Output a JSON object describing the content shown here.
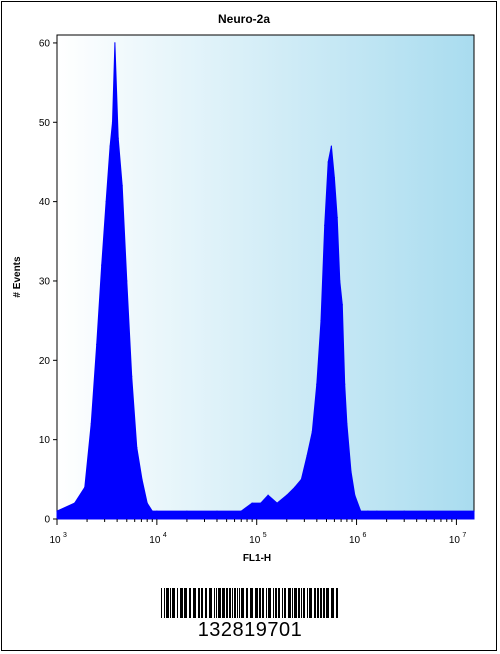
{
  "chart_data": {
    "type": "area",
    "title": "Neuro-2a",
    "xlabel": "FL1-H",
    "ylabel": "# Events",
    "x_scale": "log",
    "xlim": [
      1000,
      15000000
    ],
    "ylim": [
      0,
      61
    ],
    "grid": false,
    "legend": "none",
    "x_tick_labels": [
      {
        "base": "10",
        "exp": "3",
        "value": 1000
      },
      {
        "base": "10",
        "exp": "4",
        "value": 10000
      },
      {
        "base": "10",
        "exp": "5",
        "value": 100000
      },
      {
        "base": "10",
        "exp": "6",
        "value": 1000000
      },
      {
        "base": "10",
        "exp": "7",
        "value": 10000000
      }
    ],
    "y_ticks": [
      0,
      10,
      20,
      30,
      40,
      50,
      60
    ],
    "series": [
      {
        "color": "#0000ff",
        "x": [
          1000,
          1500,
          1900,
          2200,
          2500,
          2800,
          3100,
          3400,
          3600,
          3800,
          4100,
          4500,
          5000,
          5600,
          6300,
          7100,
          8000,
          9000,
          10000,
          20000,
          40000,
          70000,
          90000,
          110000,
          130000,
          160000,
          200000,
          240000,
          280000,
          320000,
          360000,
          400000,
          440000,
          480000,
          520000,
          560000,
          600000,
          640000,
          680000,
          720000,
          760000,
          800000,
          880000,
          960000,
          1100000,
          1300000,
          1600000,
          3000000,
          15000000
        ],
        "y": [
          1,
          2,
          4,
          12,
          22,
          32,
          40,
          47,
          50,
          60,
          48,
          42,
          30,
          18,
          9,
          5,
          2,
          1,
          1,
          1,
          1,
          1,
          2,
          2,
          3,
          2,
          3,
          4,
          5,
          8,
          11,
          17,
          25,
          37,
          45,
          47,
          43,
          38,
          30,
          27,
          17,
          12,
          6,
          3,
          1,
          1,
          1,
          1,
          1
        ]
      }
    ]
  },
  "barcode": {
    "number": "132819701"
  },
  "colors": {
    "plot_background_start": "#ffffff",
    "plot_background_end": "#a9dcef",
    "histogram_fill": "#0000ff"
  }
}
